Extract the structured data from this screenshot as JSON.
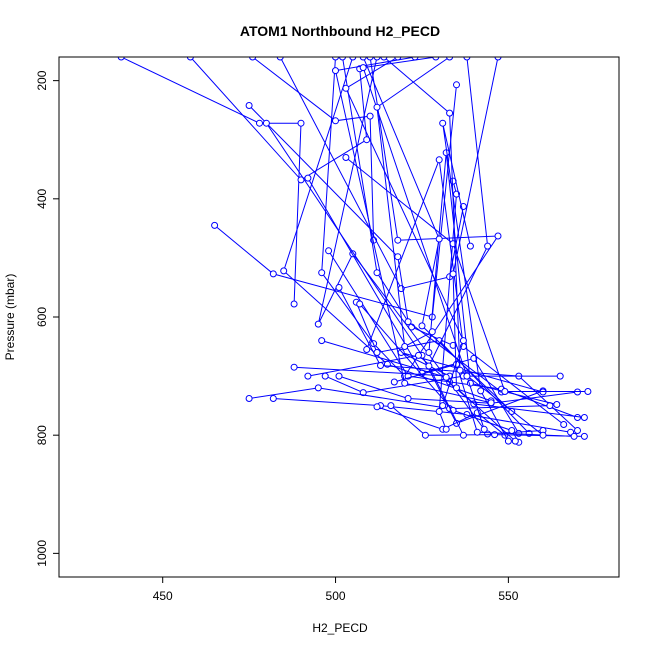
{
  "chart_data": {
    "type": "scatter",
    "title": "ATOM1 Northbound H2_PECD",
    "xlabel": "H2_PECD",
    "ylabel": "Pressure (mbar)",
    "xlim": [
      420,
      582
    ],
    "ylim": [
      1040,
      160
    ],
    "y_reversed": true,
    "x_ticks": [
      450,
      500,
      550
    ],
    "y_ticks": [
      200,
      400,
      600,
      800,
      1000
    ],
    "grid": false,
    "color": "#0000ff",
    "series": [
      {
        "x": [
          438,
          478,
          490,
          488
        ],
        "y": [
          160,
          272,
          272,
          578
        ]
      },
      {
        "x": [
          458,
          490,
          509,
          507
        ],
        "y": [
          160,
          368,
          300,
          180
        ]
      },
      {
        "x": [
          476,
          500,
          510,
          511
        ],
        "y": [
          160,
          268,
          260,
          470
        ]
      },
      {
        "x": [
          465,
          482,
          528,
          535
        ],
        "y": [
          445,
          527,
          600,
          207
        ]
      },
      {
        "x": [
          484,
          519,
          533,
          537
        ],
        "y": [
          160,
          552,
          532,
          413
        ]
      },
      {
        "x": [
          500,
          496,
          511,
          520
        ],
        "y": [
          160,
          525,
          645,
          700
        ]
      },
      {
        "x": [
          502,
          512,
          522,
          534
        ],
        "y": [
          160,
          525,
          617,
          648
        ]
      },
      {
        "x": [
          505,
          485,
          515,
          545
        ],
        "y": [
          160,
          522,
          680,
          742
        ]
      },
      {
        "x": [
          510,
          518,
          547,
          520
        ],
        "y": [
          160,
          470,
          463,
          700
        ]
      },
      {
        "x": [
          512,
          495,
          505,
          533
        ],
        "y": [
          160,
          612,
          493,
          710
        ]
      },
      {
        "x": [
          475,
          518,
          521,
          548
        ],
        "y": [
          242,
          498,
          608,
          727
        ]
      },
      {
        "x": [
          480,
          525,
          535,
          560
        ],
        "y": [
          272,
          665,
          780,
          725
        ]
      },
      {
        "x": [
          492,
          525,
          540,
          553
        ],
        "y": [
          365,
          695,
          670,
          797
        ]
      },
      {
        "x": [
          498,
          521,
          548,
          570
        ],
        "y": [
          488,
          700,
          722,
          770
        ]
      },
      {
        "x": [
          501,
          513,
          553,
          570
        ],
        "y": [
          550,
          682,
          700,
          792
        ]
      },
      {
        "x": [
          506,
          512,
          530,
          556
        ],
        "y": [
          575,
          660,
          640,
          797
        ]
      },
      {
        "x": [
          488,
          533,
          519,
          560
        ],
        "y": [
          685,
          700,
          660,
          727
        ]
      },
      {
        "x": [
          492,
          524,
          540,
          572
        ],
        "y": [
          700,
          665,
          747,
          770
        ]
      },
      {
        "x": [
          497,
          508,
          537,
          565
        ],
        "y": [
          700,
          728,
          700,
          700
        ]
      },
      {
        "x": [
          501,
          521,
          545,
          570
        ],
        "y": [
          700,
          738,
          746,
          727
        ]
      },
      {
        "x": [
          475,
          495,
          533,
          562
        ],
        "y": [
          738,
          720,
          755,
          750
        ]
      },
      {
        "x": [
          482,
          513,
          538,
          568
        ],
        "y": [
          738,
          750,
          765,
          795
        ]
      },
      {
        "x": [
          496,
          532,
          544,
          560
        ],
        "y": [
          640,
          702,
          798,
          792
        ]
      },
      {
        "x": [
          507,
          534,
          551,
          553
        ],
        "y": [
          578,
          758,
          792,
          812
        ]
      },
      {
        "x": [
          512,
          531,
          541,
          549
        ],
        "y": [
          752,
          790,
          762,
          800
        ]
      },
      {
        "x": [
          516,
          526,
          546,
          572
        ],
        "y": [
          750,
          800,
          799,
          802
        ]
      },
      {
        "x": [
          517,
          535,
          541,
          569
        ],
        "y": [
          710,
          680,
          795,
          802
        ]
      },
      {
        "x": [
          509,
          530,
          537,
          566
        ],
        "y": [
          655,
          334,
          650,
          782
        ]
      },
      {
        "x": [
          527,
          532,
          539,
          564
        ],
        "y": [
          660,
          322,
          712,
          748
        ]
      },
      {
        "x": [
          534,
          535,
          530,
          532
        ],
        "y": [
          370,
          392,
          760,
          790
        ]
      },
      {
        "x": [
          539,
          531,
          542,
          550
        ],
        "y": [
          480,
          272,
          725,
          810
        ]
      },
      {
        "x": [
          503,
          534,
          549,
          573
        ],
        "y": [
          330,
          476,
          726,
          726
        ]
      },
      {
        "x": [
          508,
          530,
          525,
          551
        ],
        "y": [
          160,
          468,
          615,
          760
        ]
      },
      {
        "x": [
          514,
          533,
          536,
          560
        ],
        "y": [
          160,
          255,
          690,
          800
        ]
      },
      {
        "x": [
          538,
          544,
          527,
          537
        ],
        "y": [
          160,
          480,
          683,
          800
        ]
      },
      {
        "x": [
          547,
          534,
          535,
          552
        ],
        "y": [
          160,
          527,
          720,
          810
        ]
      },
      {
        "x": [
          523,
          500,
          520,
          545
        ],
        "y": [
          160,
          183,
          712,
          745
        ]
      },
      {
        "x": [
          518,
          503,
          537,
          531
        ],
        "y": [
          160,
          213,
          640,
          750
        ]
      },
      {
        "x": [
          529,
          508,
          538,
          543
        ],
        "y": [
          160,
          178,
          700,
          790
        ]
      },
      {
        "x": [
          533,
          512,
          520,
          528
        ],
        "y": [
          160,
          245,
          650,
          625
        ]
      }
    ]
  }
}
